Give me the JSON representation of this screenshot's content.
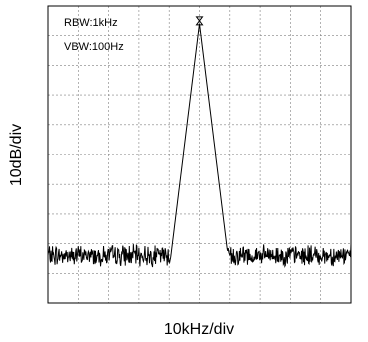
{
  "chart_data": {
    "type": "line",
    "xlabel": "10kHz/div",
    "ylabel": "10dB/div",
    "annotations": [
      "RBW:1kHz",
      "VBW:100Hz"
    ],
    "grid": true,
    "x_divisions": 10,
    "y_divisions": 10,
    "xlim": [
      0,
      10
    ],
    "ylim": [
      0,
      10
    ],
    "colors": {
      "trace": "#000000",
      "grid": "#808080",
      "frame": "#000000",
      "marker": "#000000"
    },
    "peak": {
      "x": 5.0,
      "y": 9.4
    },
    "noise_floor_level": 1.6,
    "skirt_start_x": [
      4.0,
      6.0
    ]
  }
}
